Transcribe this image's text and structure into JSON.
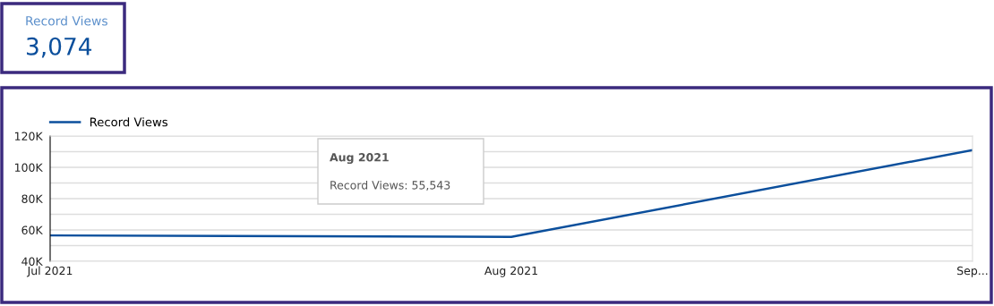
{
  "chart_data": [
    {
      "type": "other",
      "title": "Record Views",
      "annotations": [
        "3,074"
      ]
    },
    {
      "type": "line",
      "categories": [
        "Jul 2021",
        "Aug 2021",
        "Sep..."
      ],
      "series": [
        {
          "name": "Record Views",
          "color": "#0b4f9c",
          "values": [
            56500,
            55543,
            111000
          ]
        }
      ],
      "ylim": [
        40000,
        120000
      ],
      "yticks": [
        {
          "value": 40000,
          "label": "40K"
        },
        {
          "value": 50000,
          "label": null
        },
        {
          "value": 60000,
          "label": "60K"
        },
        {
          "value": 70000,
          "label": null
        },
        {
          "value": 80000,
          "label": "80K"
        },
        {
          "value": 90000,
          "label": null
        },
        {
          "value": 100000,
          "label": "100K"
        },
        {
          "value": 110000,
          "label": null
        },
        {
          "value": 120000,
          "label": "120K"
        }
      ],
      "grid": "y",
      "legend": "top left",
      "marker": "none",
      "line_style": "solid",
      "annotations": [
        "Aug 2021",
        "Record Views: 55,543"
      ]
    }
  ]
}
